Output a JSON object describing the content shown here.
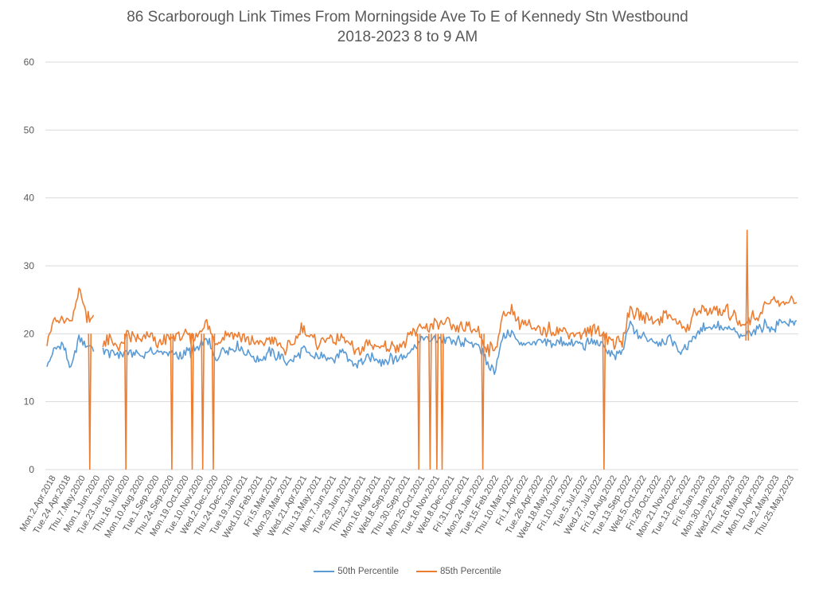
{
  "chart_data": {
    "type": "line",
    "title": "86 Scarborough Link Times From Morningside Ave To E of Kennedy Stn Westbound",
    "subtitle": "2018-2023 8 to 9 AM",
    "xlabel": "",
    "ylabel": "",
    "ylim": [
      0,
      60
    ],
    "yticks": [
      "0",
      "10",
      "20",
      "30",
      "40",
      "50",
      "60"
    ],
    "grid": true,
    "legend_position": "bottom",
    "x_tick_labels": [
      "Mon.2.Apr.2018",
      "Tue.24.Apr.2018",
      "Thu.7.May.2020",
      "Mon.1.Jun.2020",
      "Tue.23.Jun.2020",
      "Thu.16.Jul.2020",
      "Mon.10.Aug.2020",
      "Tue.1.Sep.2020",
      "Thu.24.Sep.2020",
      "Mon.19.Oct.2020",
      "Tue.10.Nov.2020",
      "Wed.2.Dec.2020",
      "Thu.24.Dec.2020",
      "Tue.19.Jan.2021",
      "Wed.10.Feb.2021",
      "Fri.5.Mar.2021",
      "Mon.29.Mar.2021",
      "Wed.21.Apr.2021",
      "Thu.13.May.2021",
      "Mon.7.Jun.2021",
      "Tue.29.Jun.2021",
      "Thu.22.Jul.2021",
      "Mon.16.Aug.2021",
      "Wed.8.Sep.2021",
      "Thu.30.Sep.2021",
      "Mon.25.Oct.2021",
      "Tue.16.Nov.2021",
      "Wed.8.Dec.2021",
      "Fri.31.Dec.2021",
      "Mon.24.Jan.2022",
      "Tue.15.Feb.2022",
      "Thu.10.Mar.2022",
      "Fri.1.Apr.2022",
      "Tue.26.Apr.2022",
      "Wed.18.May.2022",
      "Fri.10.Jun.2022",
      "Tue.5.Jul.2022",
      "Wed.27.Jul.2022",
      "Fri.19.Aug.2022",
      "Tue.13.Sep.2022",
      "Wed.5.Oct.2022",
      "Fri.28.Oct.2022",
      "Mon.21.Nov.2022",
      "Tue.13.Dec.2022",
      "Fri.6.Jan.2023",
      "Mon.30.Jan.2023",
      "Wed.22.Feb.2023",
      "Thu.16.Mar.2023",
      "Mon.10.Apr.2023",
      "Tue.2.May.2023",
      "Thu.25.May.2023"
    ],
    "series": [
      {
        "name": "50th Percentile",
        "color": "#5B9BD5",
        "values": [
          15.4,
          17.8,
          18.6,
          14.6,
          19.6,
          18.2,
          null,
          17.8,
          17.2,
          16.9,
          17.4,
          17.1,
          16.8,
          17.6,
          17.2,
          17.3,
          16.8,
          17.0,
          17.3,
          17.8,
          19.5,
          16.0,
          17.8,
          17.6,
          18.3,
          17.2,
          16.3,
          16.5,
          17.3,
          16.6,
          15.8,
          16.4,
          17.6,
          16.6,
          16.4,
          16.8,
          16.2,
          17.5,
          15.8,
          15.5,
          16.6,
          16.2,
          16.1,
          16.3,
          16.3,
          17.0,
          18.2,
          19.3,
          19.0,
          19.3,
          19.1,
          18.8,
          19.0,
          18.6,
          18.5,
          15.7,
          14.6,
          19.4,
          20.2,
          18.7,
          18.9,
          18.6,
          18.7,
          18.7,
          18.9,
          18.6,
          18.4,
          18.3,
          18.8,
          18.4,
          17.8,
          16.6,
          17.2,
          21.5,
          19.4,
          19.5,
          18.8,
          18.7,
          19.6,
          17.5,
          17.7,
          19.6,
          21.0,
          20.9,
          21.1,
          20.7,
          20.6,
          19.0,
          20.4,
          20.9,
          21.4,
          20.7,
          22.1,
          21.5
        ]
      },
      {
        "name": "85th Percentile",
        "color": "#ED7D31",
        "values": [
          19.3,
          22.0,
          21.8,
          21.4,
          27.0,
          22.6,
          null,
          18.6,
          18.8,
          18.1,
          19.6,
          19.5,
          18.9,
          20.3,
          18.2,
          19.4,
          19.6,
          19.7,
          19.2,
          20.2,
          21.5,
          18.3,
          19.7,
          20.1,
          19.7,
          19.2,
          18.6,
          18.6,
          19.2,
          18.1,
          17.8,
          18.7,
          21.0,
          19.1,
          18.7,
          19.4,
          19.0,
          19.6,
          17.9,
          17.3,
          18.4,
          18.2,
          18.2,
          18.3,
          18.0,
          18.9,
          20.3,
          21.0,
          21.0,
          21.4,
          21.3,
          20.9,
          20.9,
          20.7,
          20.4,
          17.9,
          17.6,
          22.2,
          23.7,
          21.5,
          21.4,
          20.4,
          20.4,
          20.7,
          20.9,
          20.3,
          20.1,
          20.0,
          20.8,
          20.5,
          19.5,
          18.5,
          18.9,
          23.5,
          22.7,
          22.2,
          21.9,
          22.5,
          23.0,
          21.3,
          20.4,
          22.6,
          23.5,
          23.6,
          23.1,
          23.4,
          22.5,
          21.4,
          22.3,
          22.9,
          24.5,
          24.7,
          24.7,
          24.8
        ]
      }
    ],
    "spikes": [
      {
        "series": "85th Percentile",
        "position": 0.059,
        "value": 0
      },
      {
        "series": "85th Percentile",
        "position": 0.107,
        "value": 0
      },
      {
        "series": "85th Percentile",
        "position": 0.168,
        "value": 0
      },
      {
        "series": "85th Percentile",
        "position": 0.195,
        "value": 0
      },
      {
        "series": "85th Percentile",
        "position": 0.209,
        "value": 0
      },
      {
        "series": "85th Percentile",
        "position": 0.223,
        "value": 0
      },
      {
        "series": "85th Percentile",
        "position": 0.496,
        "value": 0
      },
      {
        "series": "85th Percentile",
        "position": 0.511,
        "value": 0
      },
      {
        "series": "85th Percentile",
        "position": 0.52,
        "value": 0
      },
      {
        "series": "85th Percentile",
        "position": 0.527,
        "value": 0
      },
      {
        "series": "85th Percentile",
        "position": 0.581,
        "value": 0
      },
      {
        "series": "85th Percentile",
        "position": 0.742,
        "value": 0
      },
      {
        "series": "85th Percentile",
        "position": 0.932,
        "value": 35.3
      }
    ]
  }
}
